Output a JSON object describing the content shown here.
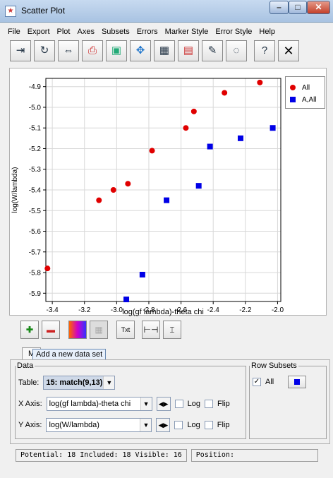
{
  "window": {
    "title": "Scatter Plot"
  },
  "menu": [
    "File",
    "Export",
    "Plot",
    "Axes",
    "Subsets",
    "Errors",
    "Marker Style",
    "Error Style",
    "Help"
  ],
  "toolbar": {
    "close_glyph": "✕",
    "help_glyph": "?"
  },
  "chart_data": {
    "type": "scatter",
    "xlabel": "log(gf lambda)-theta chi",
    "ylabel": "log(W/lambda)",
    "xlim": [
      -3.44,
      -1.98
    ],
    "ylim": [
      -5.94,
      -4.86
    ],
    "xticks": [
      "-3.4",
      "-3.2",
      "-3.0",
      "-2.8",
      "-2.6",
      "-2.4",
      "-2.2",
      "-2.0"
    ],
    "xtick_values": [
      -3.4,
      -3.2,
      -3.0,
      -2.8,
      -2.6,
      -2.4,
      -2.2,
      -2.0
    ],
    "yticks": [
      "-4.9",
      "-5.0",
      "-5.1",
      "-5.2",
      "-5.3",
      "-5.4",
      "-5.5",
      "-5.6",
      "-5.7",
      "-5.8",
      "-5.9"
    ],
    "ytick_values": [
      -4.9,
      -5.0,
      -5.1,
      -5.2,
      -5.3,
      -5.4,
      -5.5,
      -5.6,
      -5.7,
      -5.8,
      -5.9
    ],
    "grid": true,
    "legend_position": "top-right",
    "series": [
      {
        "name": "All",
        "marker": "circle",
        "color": "#e00000",
        "x": [
          -3.43,
          -3.11,
          -3.02,
          -2.93,
          -2.78,
          -2.57,
          -2.52,
          -2.33,
          -2.11
        ],
        "y": [
          -5.78,
          -5.45,
          -5.4,
          -5.37,
          -5.21,
          -5.1,
          -5.02,
          -4.93,
          -4.88
        ]
      },
      {
        "name": "A,All",
        "marker": "square",
        "color": "#0000e6",
        "x": [
          -2.94,
          -2.84,
          -2.69,
          -2.49,
          -2.42,
          -2.23,
          -2.03
        ],
        "y": [
          -5.93,
          -5.81,
          -5.45,
          -5.38,
          -5.19,
          -5.15,
          -5.1
        ]
      }
    ]
  },
  "tooltip": "Add a new data set",
  "tabs": [
    "M"
  ],
  "data_panel": {
    "legend": "Data",
    "table_label": "Table:",
    "table_value": "15: match(9,13)",
    "x_axis_label": "X Axis:",
    "x_axis_value": "log(gf lambda)-theta chi",
    "y_axis_label": "Y Axis:",
    "y_axis_value": "log(W/lambda)",
    "log_label": "Log",
    "flip_label": "Flip"
  },
  "row_subsets": {
    "legend": "Row Subsets",
    "item_label": "All",
    "checked": true
  },
  "status": {
    "counts": "Potential: 18 Included: 18 Visible: 16",
    "position": "Position:"
  }
}
